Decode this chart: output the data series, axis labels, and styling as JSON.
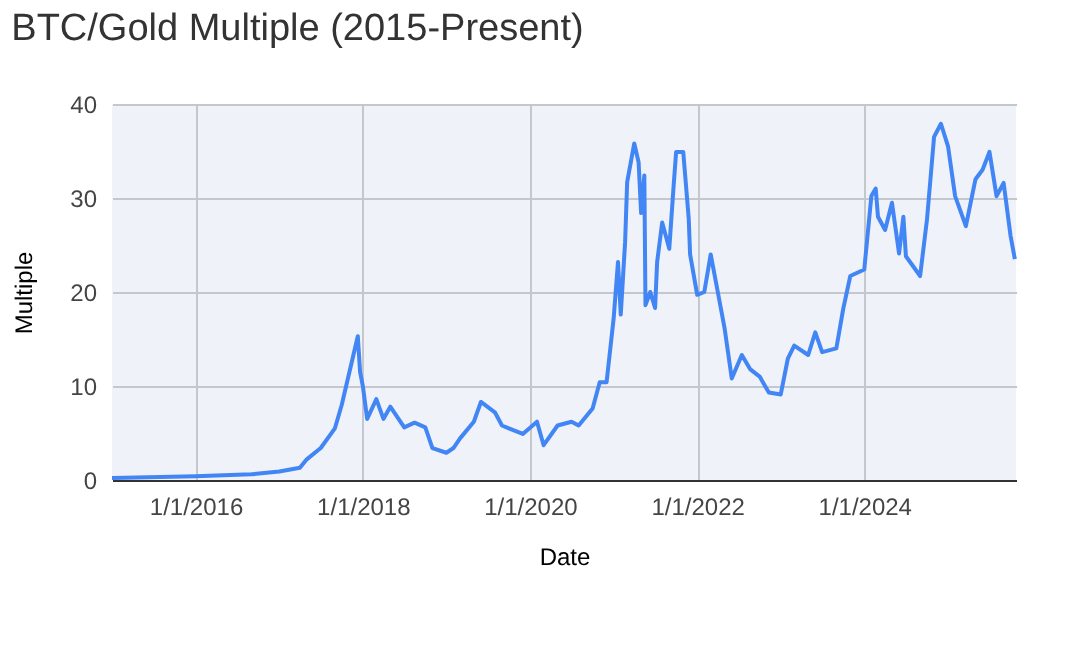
{
  "chart_data": {
    "type": "line",
    "title": "BTC/Gold Multiple (2015-Present)",
    "xlabel": "Date",
    "ylabel": "Multiple",
    "x": [
      "2015-01-01",
      "2016-01-01",
      "2016-09-01",
      "2017-01-01",
      "2017-04-01",
      "2017-05-01",
      "2017-07-01",
      "2017-09-01",
      "2017-10-01",
      "2017-12-10",
      "2017-12-20",
      "2018-01-01",
      "2018-01-20",
      "2018-03-01",
      "2018-04-01",
      "2018-05-01",
      "2018-07-01",
      "2018-08-15",
      "2018-10-01",
      "2018-11-01",
      "2019-01-01",
      "2019-02-01",
      "2019-03-01",
      "2019-05-01",
      "2019-06-01",
      "2019-08-01",
      "2019-09-01",
      "2019-10-01",
      "2019-12-01",
      "2020-02-01",
      "2020-03-01",
      "2020-05-01",
      "2020-07-01",
      "2020-08-01",
      "2020-10-01",
      "2020-11-01",
      "2020-12-01",
      "2021-01-01",
      "2021-01-20",
      "2021-02-01",
      "2021-02-20",
      "2021-03-01",
      "2021-04-01",
      "2021-04-20",
      "2021-05-01",
      "2021-05-15",
      "2021-05-20",
      "2021-06-10",
      "2021-07-01",
      "2021-07-10",
      "2021-08-01",
      "2021-09-01",
      "2021-09-20",
      "2021-10-01",
      "2021-11-01",
      "2021-11-25",
      "2021-12-01",
      "2022-01-01",
      "2022-02-01",
      "2022-03-01",
      "2022-04-01",
      "2022-05-01",
      "2022-06-01",
      "2022-07-15",
      "2022-08-20",
      "2022-10-01",
      "2022-11-10",
      "2023-01-01",
      "2023-02-01",
      "2023-03-01",
      "2023-05-01",
      "2023-06-01",
      "2023-07-01",
      "2023-09-01",
      "2023-10-01",
      "2023-11-01",
      "2024-01-01",
      "2024-02-01",
      "2024-02-20",
      "2024-03-01",
      "2024-04-01",
      "2024-05-01",
      "2024-06-01",
      "2024-06-20",
      "2024-07-01",
      "2024-09-01",
      "2024-10-01",
      "2024-11-01",
      "2024-12-01",
      "2025-01-01",
      "2025-02-01",
      "2025-03-20",
      "2025-05-01",
      "2025-06-01",
      "2025-07-01",
      "2025-08-01",
      "2025-09-01",
      "2025-10-01",
      "2025-10-20"
    ],
    "series": [
      {
        "color": "#4285f4",
        "values": [
          0.2,
          0.4,
          0.6,
          0.9,
          1.3,
          2.2,
          3.4,
          5.5,
          8,
          15.3,
          11.5,
          10,
          6.5,
          8.6,
          6.5,
          7.8,
          5.6,
          6.1,
          5.6,
          3.4,
          2.9,
          3.4,
          4.4,
          6.2,
          8.3,
          7.2,
          5.8,
          5.5,
          4.9,
          6.2,
          3.7,
          5.8,
          6.2,
          5.8,
          7.6,
          10.4,
          10.4,
          17.2,
          23.2,
          17.6,
          25.3,
          31.7,
          35.8,
          33.8,
          28.4,
          32.4,
          18.6,
          20,
          18.3,
          23.2,
          27.4,
          24.6,
          31.3,
          34.9,
          34.9,
          27.8,
          24,
          19.7,
          20,
          24,
          20,
          16.1,
          10.8,
          13.3,
          11.8,
          11,
          9.3,
          9.1,
          12.9,
          14.3,
          13.3,
          15.7,
          13.6,
          14,
          18.2,
          21.7,
          22.4,
          30.2,
          31,
          28,
          26.6,
          29.5,
          24.1,
          28,
          23.8,
          21.7,
          27.7,
          36.5,
          37.9,
          35.5,
          30.2,
          27,
          32,
          33,
          34.9,
          30.2,
          31.6,
          26,
          23.5
        ]
      }
    ],
    "xlim": [
      "2015-01-01",
      "2025-10-25"
    ],
    "xticks": [
      {
        "value": "2016-01-01",
        "label": "1/1/2016"
      },
      {
        "value": "2018-01-01",
        "label": "1/1/2018"
      },
      {
        "value": "2020-01-01",
        "label": "1/1/2020"
      },
      {
        "value": "2022-01-01",
        "label": "1/1/2022"
      },
      {
        "value": "2024-01-01",
        "label": "1/1/2024"
      }
    ],
    "ylim": [
      0,
      40
    ],
    "yticks": [
      0,
      10,
      20,
      30,
      40
    ],
    "grid": true
  }
}
